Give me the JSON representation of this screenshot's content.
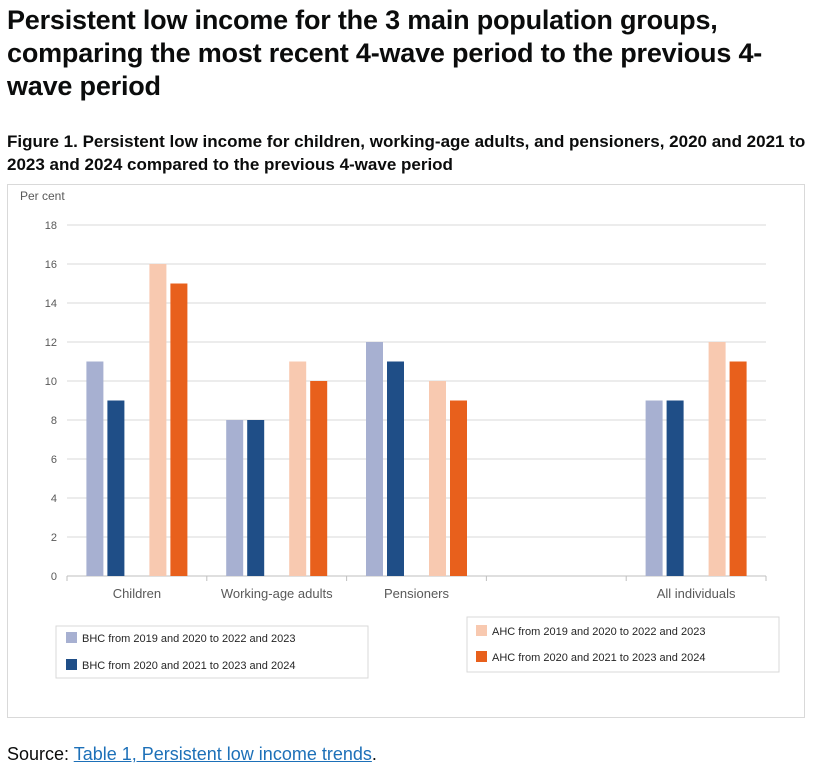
{
  "page": {
    "heading": "Persistent low income for the 3 main population groups, comparing the most recent 4-wave period to the previous 4-wave period",
    "figure_title": "Figure 1. Persistent low income for children, working-age adults, and pensioners, 2020 and 2021 to 2023 and 2024 compared to the previous 4-wave period",
    "source_prefix": "Source: ",
    "source_link_text": "Table 1, Persistent low income trends",
    "source_suffix": "."
  },
  "chart_data": {
    "type": "bar",
    "ylabel": "Per cent",
    "ylim": [
      0,
      18
    ],
    "yticks": [
      0,
      2,
      4,
      6,
      8,
      10,
      12,
      14,
      16,
      18
    ],
    "grid": true,
    "legend_position": "bottom",
    "categories": [
      "Children",
      "Working-age adults",
      "Pensioners",
      "",
      "All individuals"
    ],
    "series": [
      {
        "name": "BHC from 2019 and 2020 to 2022 and 2023",
        "color": "#a7b0d1",
        "values": [
          11,
          8,
          12,
          null,
          9
        ]
      },
      {
        "name": "BHC from 2020 and 2021 to 2023 and 2024",
        "color": "#1f4e87",
        "values": [
          9,
          8,
          11,
          null,
          9
        ]
      },
      {
        "name": "AHC from 2019 and 2020 to 2022 and 2023",
        "color": "#f8c9b0",
        "values": [
          16,
          11,
          10,
          null,
          12
        ]
      },
      {
        "name": "AHC from 2020 and 2021 to 2023 and 2024",
        "color": "#e8601c",
        "values": [
          15,
          10,
          9,
          null,
          11
        ]
      }
    ]
  }
}
